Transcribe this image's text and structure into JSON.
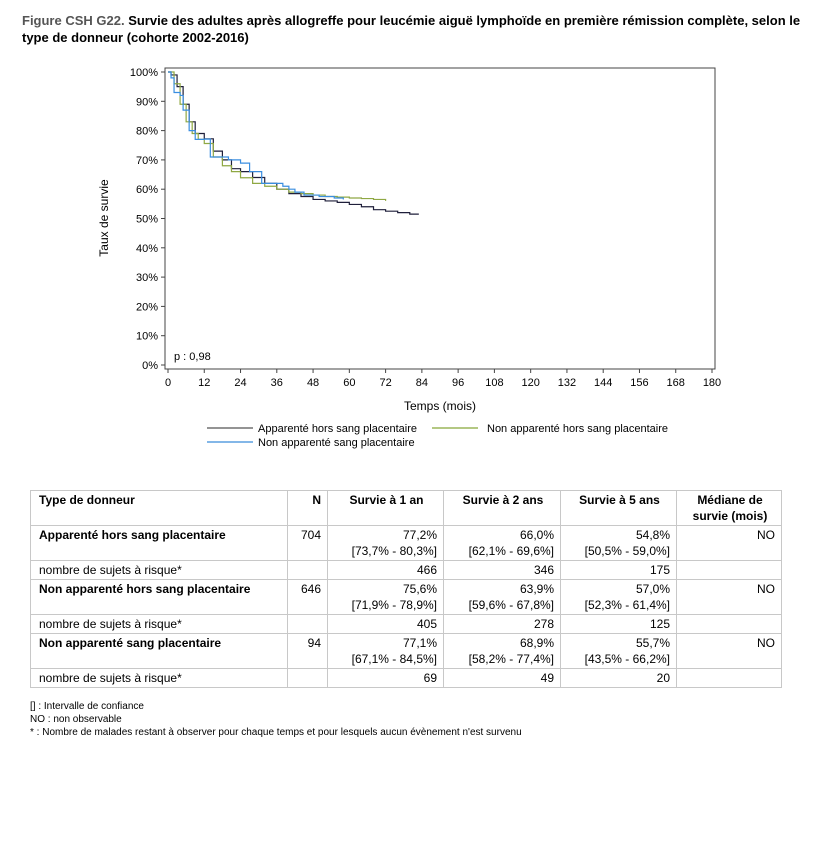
{
  "title": {
    "label": "Figure CSH G22.",
    "text": " Survie des adultes après allogreffe pour leucémie aiguë lymphoïde en première rémission complète, selon le type de donneur  (cohorte 2002-2016)"
  },
  "chart_data": {
    "type": "line",
    "xlabel": "Temps (mois)",
    "ylabel": "Taux de survie",
    "xlim": [
      0,
      180
    ],
    "ylim": [
      0,
      100
    ],
    "xticks": [
      0,
      12,
      24,
      36,
      48,
      60,
      72,
      84,
      96,
      108,
      120,
      132,
      144,
      156,
      168,
      180
    ],
    "yticks": [
      "0%",
      "10%",
      "20%",
      "30%",
      "40%",
      "50%",
      "60%",
      "70%",
      "80%",
      "90%",
      "100%"
    ],
    "annotation": "p : 0,98",
    "legend_position": "bottom",
    "series": [
      {
        "name": "Apparenté hors sang placentaire",
        "color": "#1f1f3a",
        "legend_color": "#707070",
        "x": [
          0,
          1,
          3,
          5,
          7,
          9,
          12,
          15,
          18,
          21,
          24,
          28,
          32,
          36,
          40,
          44,
          48,
          52,
          56,
          60,
          64,
          68,
          72,
          76,
          80,
          83
        ],
        "y": [
          100,
          99,
          95,
          89,
          83,
          79,
          77.2,
          73,
          70,
          67,
          66,
          64,
          62,
          60,
          58.5,
          57.5,
          56.5,
          56,
          55.5,
          54.8,
          54,
          53,
          52.5,
          52,
          51.5,
          51.5
        ]
      },
      {
        "name": "Non apparenté hors sang placentaire",
        "color": "#8fa843",
        "legend_color": "#9bb55a",
        "x": [
          0,
          2,
          4,
          6,
          8,
          10,
          12,
          15,
          18,
          21,
          24,
          28,
          32,
          36,
          40,
          44,
          48,
          52,
          56,
          60,
          64,
          68,
          72
        ],
        "y": [
          100,
          96,
          89,
          83,
          79,
          77,
          75.6,
          71,
          68,
          66,
          63.9,
          62,
          61,
          60,
          59,
          58.5,
          58,
          57.5,
          57.3,
          57,
          56.8,
          56.5,
          56
        ]
      },
      {
        "name": "Non apparenté sang placentaire",
        "color": "#3a8ee0",
        "legend_color": "#5a9fe0",
        "x": [
          0,
          1,
          2,
          4,
          5,
          7,
          9,
          12,
          14,
          18,
          20,
          24,
          27,
          30,
          31,
          34,
          38,
          40,
          42,
          45,
          50,
          55,
          58
        ],
        "y": [
          100,
          98,
          93,
          92,
          87,
          80,
          77,
          77.1,
          71,
          71,
          70,
          68.9,
          66,
          66,
          62,
          62,
          61,
          60,
          59,
          58,
          57.5,
          57,
          56.5
        ]
      }
    ]
  },
  "table": {
    "headers": [
      "Type de donneur",
      "N",
      "Survie à 1 an",
      "Survie à 2 ans",
      "Survie à 5 ans",
      "Médiane de survie (mois)"
    ],
    "rows": [
      {
        "name": "Apparenté hors sang placentaire",
        "n": "704",
        "y1": "77,2%",
        "y1ci": "[73,7% - 80,3%]",
        "y2": "66,0%",
        "y2ci": "[62,1% - 69,6%]",
        "y5": "54,8%",
        "y5ci": "[50,5% - 59,0%]",
        "median": "NO",
        "risk_label": "nombre de sujets à risque*",
        "r1": "466",
        "r2": "346",
        "r5": "175"
      },
      {
        "name": "Non apparenté hors sang placentaire",
        "n": "646",
        "y1": "75,6%",
        "y1ci": "[71,9% - 78,9%]",
        "y2": "63,9%",
        "y2ci": "[59,6% - 67,8%]",
        "y5": "57,0%",
        "y5ci": "[52,3% - 61,4%]",
        "median": "NO",
        "risk_label": "nombre de sujets à risque*",
        "r1": "405",
        "r2": "278",
        "r5": "125"
      },
      {
        "name": "Non apparenté sang placentaire",
        "n": "94",
        "y1": "77,1%",
        "y1ci": "[67,1% - 84,5%]",
        "y2": "68,9%",
        "y2ci": "[58,2% - 77,4%]",
        "y5": "55,7%",
        "y5ci": "[43,5% - 66,2%]",
        "median": "NO",
        "risk_label": "nombre de sujets à risque*",
        "r1": "69",
        "r2": "49",
        "r5": "20"
      }
    ]
  },
  "notes": [
    "[] : Intervalle de confiance",
    "NO : non observable",
    "* : Nombre de malades restant à observer pour chaque temps et pour lesquels aucun évènement n'est survenu"
  ]
}
